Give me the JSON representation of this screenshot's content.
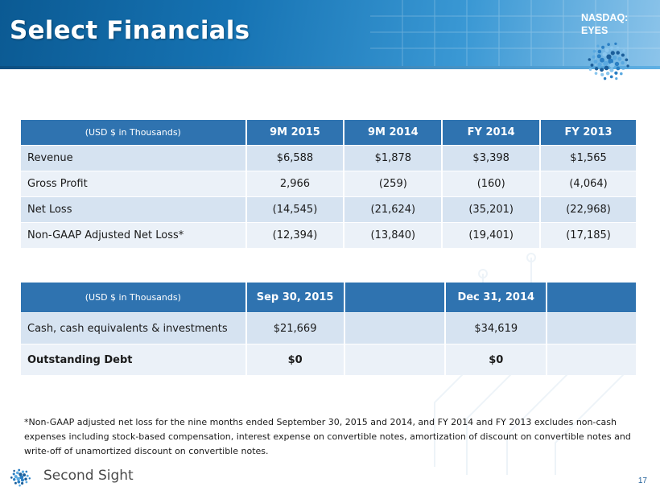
{
  "header": {
    "title": "Select Financials",
    "ticker_line1": "NASDAQ:",
    "ticker_line2": "EYES"
  },
  "table1": {
    "columns": [
      "(USD $ in Thousands)",
      "9M 2015",
      "9M 2014",
      "FY 2014",
      "FY 2013"
    ],
    "rows": [
      {
        "label": "Revenue",
        "values": [
          "$6,588",
          "$1,878",
          "$3,398",
          "$1,565"
        ]
      },
      {
        "label": "Gross Profit",
        "values": [
          "2,966",
          "(259)",
          "(160)",
          "(4,064)"
        ]
      },
      {
        "label": "Net Loss",
        "values": [
          "(14,545)",
          "(21,624)",
          "(35,201)",
          "(22,968)"
        ]
      },
      {
        "label": "Non-GAAP Adjusted Net Loss*",
        "values": [
          "(12,394)",
          "(13,840)",
          "(19,401)",
          "(17,185)"
        ]
      }
    ]
  },
  "table2": {
    "columns": [
      "(USD $ in Thousands)",
      "Sep 30, 2015",
      "",
      "Dec 31, 2014",
      ""
    ],
    "rows": [
      {
        "label": "Cash, cash equivalents & investments",
        "values": [
          "$21,669",
          "",
          "$34,619",
          ""
        ]
      },
      {
        "label": "Outstanding Debt",
        "values": [
          "$0",
          "",
          "$0",
          ""
        ]
      }
    ]
  },
  "footnote": "*Non-GAAP adjusted net loss for the nine months ended September 30, 2015 and 2014, and FY 2014 and FY 2013 excludes non-cash expenses including stock-based compensation, interest expense on convertible notes, amortization of discount on convertible notes and write-off of unamortized discount on convertible notes.",
  "footer": {
    "company": "Second Sight",
    "page": "17"
  },
  "colors": {
    "header_blue": "#1673b3",
    "table_header": "#2f73b0",
    "row_dark": "#d6e3f1",
    "row_light": "#ebf1f8"
  },
  "icons": {
    "globe": "dotted-globe-icon",
    "logo": "second-sight-logo"
  }
}
